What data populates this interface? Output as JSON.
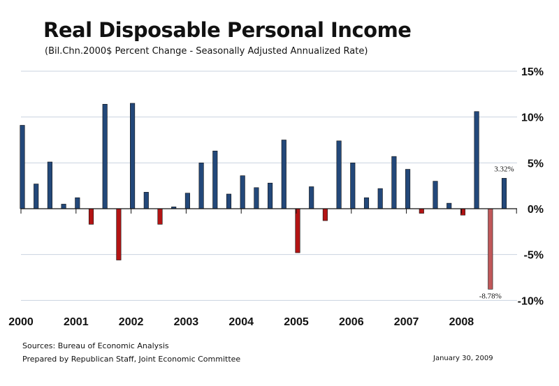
{
  "title": "Real Disposable Personal Income",
  "subtitle": "(Bil.Chn.2000$    Percent Change - Seasonally Adjusted Annualized Rate)",
  "footer": {
    "sources": "Sources: Bureau of Economic Analysis",
    "prepared_by": "Prepared by Republican Staff, Joint Economic Committee",
    "date": "January 30, 2009"
  },
  "colors": {
    "positive": "#23487A",
    "negative": "#B31414",
    "highlight_negative": "#C0585A",
    "grid": "#C9D3DF"
  },
  "chart_data": {
    "type": "bar",
    "title": "Real Disposable Personal Income",
    "xlabel": "",
    "ylabel": "",
    "ylim": [
      -10,
      15
    ],
    "yticks": [
      "-10%",
      "-5%",
      "0%",
      "5%",
      "10%",
      "15%"
    ],
    "ytick_values": [
      -10,
      -5,
      0,
      5,
      10,
      15
    ],
    "y_axis_position": "right",
    "grid": true,
    "legend": "none",
    "year_labels": [
      "2000",
      "2001",
      "2002",
      "2003",
      "2004",
      "2005",
      "2006",
      "2007",
      "2008"
    ],
    "categories": [
      "2000Q1",
      "2000Q2",
      "2000Q3",
      "2000Q4",
      "2001Q1",
      "2001Q2",
      "2001Q3",
      "2001Q4",
      "2002Q1",
      "2002Q2",
      "2002Q3",
      "2002Q4",
      "2003Q1",
      "2003Q2",
      "2003Q3",
      "2003Q4",
      "2004Q1",
      "2004Q2",
      "2004Q3",
      "2004Q4",
      "2005Q1",
      "2005Q2",
      "2005Q3",
      "2005Q4",
      "2006Q1",
      "2006Q2",
      "2006Q3",
      "2006Q4",
      "2007Q1",
      "2007Q2",
      "2007Q3",
      "2007Q4",
      "2008Q1",
      "2008Q2",
      "2008Q3",
      "2008Q4"
    ],
    "values": [
      9.1,
      2.7,
      5.1,
      0.5,
      1.2,
      -1.7,
      11.4,
      -5.6,
      11.5,
      1.8,
      -1.7,
      0.2,
      1.7,
      5.0,
      6.3,
      1.6,
      3.6,
      2.3,
      2.8,
      7.5,
      -4.8,
      2.4,
      -1.3,
      7.4,
      5.0,
      1.2,
      2.2,
      5.7,
      4.3,
      -0.5,
      3.0,
      0.6,
      -0.7,
      10.6,
      -8.78,
      3.32
    ],
    "data_labels": [
      {
        "index": 34,
        "text": "-8.78%"
      },
      {
        "index": 35,
        "text": "3.32%"
      }
    ]
  }
}
